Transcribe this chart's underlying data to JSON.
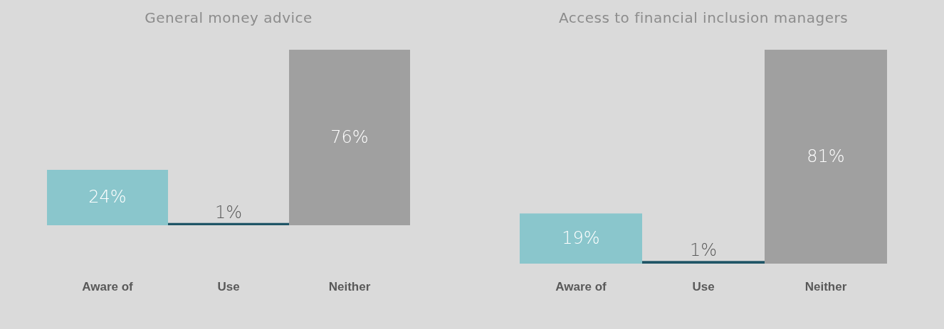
{
  "chart_data": [
    {
      "type": "bar",
      "title": "General money advice",
      "categories": [
        "Aware of",
        "Use",
        "Neither"
      ],
      "values": [
        24,
        1,
        76
      ],
      "colors": [
        "#8ac6cc",
        "#1f5566",
        "#a0a0a0"
      ],
      "value_labels": [
        "24%",
        "1%",
        "76%"
      ],
      "tick_labels": "x"
    },
    {
      "type": "bar",
      "title": "Access to financial inclusion managers",
      "categories": [
        "Aware of",
        "Use",
        "Neither"
      ],
      "values": [
        19,
        1,
        81
      ],
      "colors": [
        "#8ac6cc",
        "#1f5566",
        "#a0a0a0"
      ],
      "value_labels": [
        "19%",
        "1%",
        "81%"
      ],
      "tick_labels": "x"
    }
  ]
}
